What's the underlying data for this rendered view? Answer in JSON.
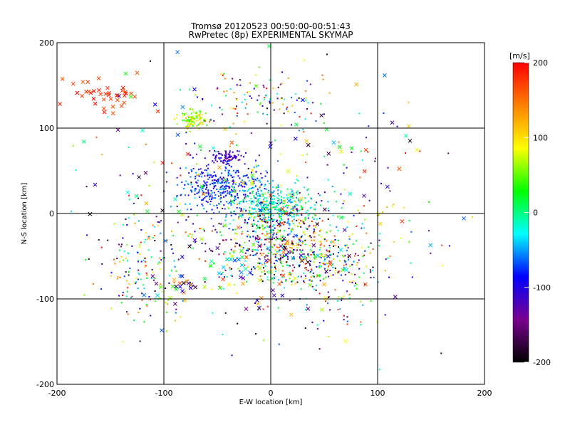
{
  "chart_data": {
    "type": "scatter",
    "title": "Tromsø 20120523 00:50:00-00:51:43",
    "subtitle": "RwPretec (8p) EXPERIMENTAL SKYMAP",
    "xlabel": "E-W location [km]",
    "ylabel": "N-S location [km]",
    "xlim": [
      -200,
      200
    ],
    "ylim": [
      -200,
      200
    ],
    "xticks": [
      "-200",
      "-100",
      "0",
      "100",
      "200"
    ],
    "yticks": [
      "-200",
      "-100",
      "0",
      "100",
      "200"
    ],
    "grid": true,
    "colorbar": {
      "label": "[m/s]",
      "range": [
        -200,
        200
      ],
      "ticks": [
        "200",
        "100",
        "0",
        "-100",
        "-200"
      ],
      "stops": [
        "#000000",
        "#7a0090",
        "#0000ff",
        "#00ffff",
        "#00ff00",
        "#ffff00",
        "#ff8000",
        "#ff0000"
      ]
    },
    "marker_types": [
      "dot",
      "cross"
    ],
    "clusters": [
      {
        "cx": -72,
        "cy": 110,
        "sx": 6,
        "sy": 5,
        "n": 110,
        "vmin": 30,
        "vmax": 120,
        "marker": "dot"
      },
      {
        "cx": -42,
        "cy": 67,
        "sx": 7,
        "sy": 4,
        "n": 80,
        "vmin": -140,
        "vmax": -100,
        "marker": "dot"
      },
      {
        "cx": -45,
        "cy": 32,
        "sx": 20,
        "sy": 15,
        "n": 380,
        "vmin": -120,
        "vmax": -40,
        "marker": "dot"
      },
      {
        "cx": 0,
        "cy": 10,
        "sx": 18,
        "sy": 12,
        "n": 330,
        "vmin": -60,
        "vmax": 20,
        "marker": "dot"
      },
      {
        "cx": 10,
        "cy": -20,
        "sx": 28,
        "sy": 20,
        "n": 360,
        "vmin": -200,
        "vmax": 200,
        "marker": "dot"
      },
      {
        "cx": 15,
        "cy": -55,
        "sx": 35,
        "sy": 15,
        "n": 220,
        "vmin": -200,
        "vmax": 200,
        "marker": "dot"
      },
      {
        "cx": -10,
        "cy": 135,
        "sx": 30,
        "sy": 18,
        "n": 110,
        "vmin": -200,
        "vmax": 200,
        "marker": "dot"
      },
      {
        "cx": -120,
        "cy": -65,
        "sx": 20,
        "sy": 30,
        "n": 150,
        "vmin": -200,
        "vmax": 200,
        "marker": "dot"
      },
      {
        "cx": 60,
        "cy": -70,
        "sx": 25,
        "sy": 25,
        "n": 120,
        "vmin": -200,
        "vmax": 200,
        "marker": "dot"
      },
      {
        "cx": 0,
        "cy": 0,
        "sx": 80,
        "sy": 70,
        "n": 300,
        "vmin": -200,
        "vmax": 200,
        "marker": "dot"
      },
      {
        "cx": -155,
        "cy": 140,
        "sx": 20,
        "sy": 12,
        "n": 40,
        "vmin": 160,
        "vmax": 200,
        "marker": "cross"
      },
      {
        "cx": -85,
        "cy": -85,
        "sx": 10,
        "sy": 8,
        "n": 25,
        "vmin": -200,
        "vmax": 200,
        "marker": "cross"
      },
      {
        "cx": 0,
        "cy": -40,
        "sx": 40,
        "sy": 35,
        "n": 80,
        "vmin": -200,
        "vmax": 200,
        "marker": "cross"
      },
      {
        "cx": 0,
        "cy": 20,
        "sx": 100,
        "sy": 80,
        "n": 120,
        "vmin": -200,
        "vmax": 200,
        "marker": "cross"
      }
    ]
  }
}
